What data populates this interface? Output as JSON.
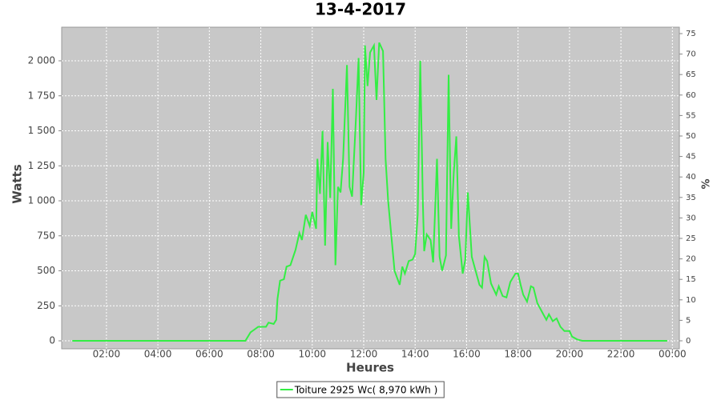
{
  "chart_data": {
    "type": "line",
    "title": "13-4-2017",
    "x_label": "Heures",
    "y_label": "Watts",
    "y2_label": "%",
    "x": [
      0.67,
      7.4,
      7.6,
      7.75,
      7.9,
      8.2,
      8.3,
      8.5,
      8.6,
      8.65,
      8.75,
      8.9,
      9.0,
      9.15,
      9.35,
      9.5,
      9.6,
      9.75,
      9.9,
      10.0,
      10.15,
      10.2,
      10.3,
      10.4,
      10.5,
      10.6,
      10.7,
      10.8,
      10.9,
      11.0,
      11.1,
      11.2,
      11.35,
      11.45,
      11.55,
      11.7,
      11.8,
      11.9,
      12.0,
      12.05,
      12.15,
      12.25,
      12.4,
      12.5,
      12.6,
      12.75,
      12.85,
      12.95,
      13.1,
      13.2,
      13.4,
      13.5,
      13.6,
      13.75,
      13.9,
      14.0,
      14.1,
      14.2,
      14.3,
      14.35,
      14.45,
      14.6,
      14.7,
      14.85,
      14.95,
      15.05,
      15.2,
      15.3,
      15.4,
      15.5,
      15.6,
      15.7,
      15.85,
      15.95,
      16.05,
      16.2,
      16.35,
      16.5,
      16.6,
      16.7,
      16.8,
      16.95,
      17.15,
      17.25,
      17.4,
      17.55,
      17.7,
      17.9,
      18.0,
      18.1,
      18.2,
      18.35,
      18.5,
      18.6,
      18.75,
      18.95,
      19.1,
      19.2,
      19.35,
      19.5,
      19.65,
      19.8,
      20.0,
      20.1,
      20.3,
      20.5,
      23.8
    ],
    "series": [
      {
        "name": "Toiture 2925 Wc( 8,970 kWh )",
        "color": "#33ee44",
        "values": [
          0,
          0,
          60,
          80,
          100,
          100,
          130,
          120,
          150,
          300,
          430,
          440,
          530,
          540,
          650,
          770,
          720,
          900,
          820,
          920,
          800,
          1300,
          1050,
          1500,
          680,
          1420,
          1020,
          1800,
          540,
          1100,
          1060,
          1300,
          1970,
          1100,
          1030,
          1600,
          2020,
          970,
          1200,
          2110,
          1820,
          2060,
          2110,
          1720,
          2130,
          2070,
          1300,
          1000,
          700,
          500,
          400,
          530,
          480,
          570,
          580,
          620,
          900,
          2000,
          1000,
          640,
          760,
          720,
          560,
          1300,
          600,
          500,
          610,
          1900,
          800,
          1200,
          1460,
          750,
          480,
          580,
          1060,
          600,
          500,
          400,
          380,
          600,
          570,
          410,
          330,
          390,
          320,
          310,
          420,
          480,
          480,
          400,
          330,
          280,
          390,
          380,
          270,
          200,
          150,
          190,
          140,
          160,
          100,
          70,
          70,
          30,
          10,
          0,
          0
        ]
      }
    ],
    "xlim": [
      0.26,
      24.27
    ],
    "xticks": [
      {
        "value": 2,
        "label": "02:00"
      },
      {
        "value": 4,
        "label": "04:00"
      },
      {
        "value": 6,
        "label": "06:00"
      },
      {
        "value": 8,
        "label": "08:00"
      },
      {
        "value": 10,
        "label": "10:00"
      },
      {
        "value": 12,
        "label": "12:00"
      },
      {
        "value": 14,
        "label": "14:00"
      },
      {
        "value": 16,
        "label": "16:00"
      },
      {
        "value": 18,
        "label": "18:00"
      },
      {
        "value": 20,
        "label": "20:00"
      },
      {
        "value": 22,
        "label": "22:00"
      },
      {
        "value": 24,
        "label": "00:00"
      }
    ],
    "ylim": [
      -57,
      2240
    ],
    "yticks": [
      0,
      250,
      500,
      750,
      {
        "value": 1000,
        "label": "1 000"
      },
      {
        "value": 1250,
        "label": "1 250"
      },
      {
        "value": 1500,
        "label": "1 500"
      },
      {
        "value": 1750,
        "label": "1 750"
      },
      {
        "value": 2000,
        "label": "2 000"
      }
    ],
    "y2lim": [
      -1.95,
      76.56
    ],
    "y2ticks": [
      0,
      5,
      10,
      15,
      20,
      25,
      30,
      35,
      40,
      45,
      50,
      55,
      60,
      65,
      70,
      75
    ],
    "grid": true
  }
}
